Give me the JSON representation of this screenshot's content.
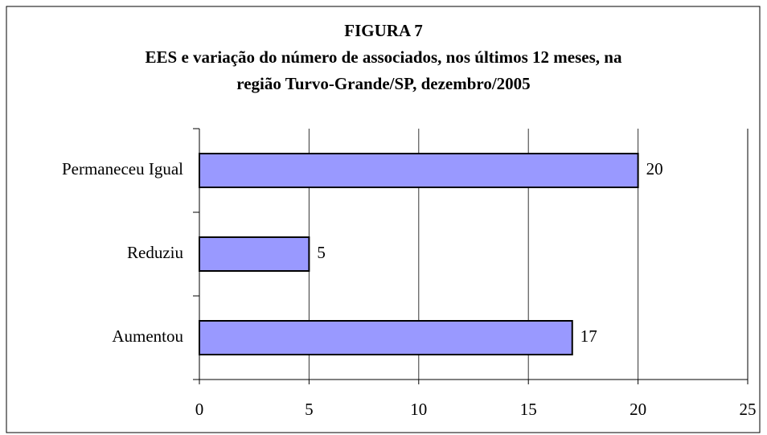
{
  "chart_data": {
    "type": "barh",
    "title": [
      "FIGURA 7",
      "EES e variação do número de associados, nos últimos 12 meses, na",
      "região Turvo-Grande/SP, dezembro/2005"
    ],
    "categories": [
      "Permaneceu Igual",
      "Reduziu",
      "Aumentou"
    ],
    "values": [
      20,
      5,
      17
    ],
    "color": "#9999ff",
    "xlim": [
      0,
      25
    ],
    "xticks": [
      0,
      5,
      10,
      15,
      20,
      25
    ],
    "grid": true
  }
}
